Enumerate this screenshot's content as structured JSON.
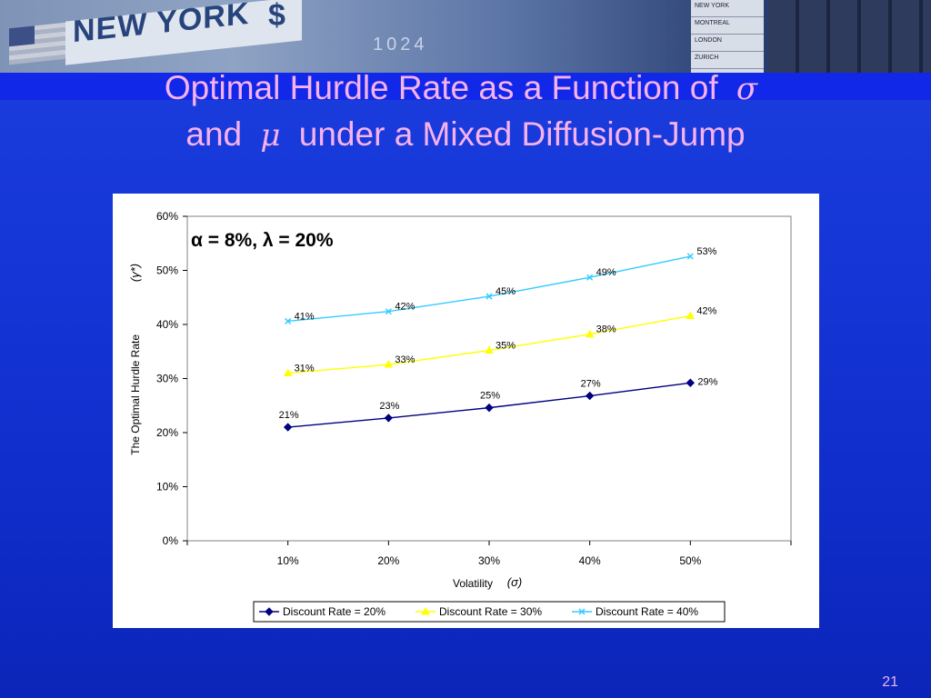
{
  "slide": {
    "title_part1": "Optimal Hurdle Rate as a Function of",
    "title_sym1": "σ",
    "title_and": "and",
    "title_sym2": "μ",
    "title_part2": "under a Mixed Diffusion-Jump",
    "page_number": "21"
  },
  "banner": {
    "sign_text": "NEW YORK",
    "dollar": "$",
    "digits": "1024",
    "board_items": [
      "NEW YORK",
      "MONTREAL",
      "LONDON",
      "ZURICH"
    ]
  },
  "colors": {
    "background": "#1535d6",
    "title": "#f7b2ee",
    "series": [
      "#000080",
      "#ffff00",
      "#33ccff"
    ]
  },
  "chart_data": {
    "type": "line",
    "annotation": "α = 8%, λ = 20%",
    "xlabel": "Volatility",
    "xlabel_symbol": "(σ)",
    "ylabel": "The Optimal Hurdle Rate",
    "ylabel_symbol": "(γ*)",
    "categories": [
      "10%",
      "20%",
      "30%",
      "40%",
      "50%"
    ],
    "y_ticks": [
      "0%",
      "10%",
      "20%",
      "30%",
      "40%",
      "50%",
      "60%"
    ],
    "ylim": [
      0,
      60
    ],
    "grid": false,
    "legend_position": "bottom",
    "series": [
      {
        "name": "Discount Rate = 20%",
        "values": [
          21,
          22.7,
          24.6,
          26.8,
          29.2
        ],
        "labels": [
          "21%",
          "23%",
          "25%",
          "27%",
          "29%"
        ],
        "marker": "diamond"
      },
      {
        "name": "Discount Rate = 30%",
        "values": [
          31,
          32.6,
          35.2,
          38.2,
          41.6
        ],
        "labels": [
          "31%",
          "33%",
          "35%",
          "38%",
          "42%"
        ],
        "marker": "triangle"
      },
      {
        "name": "Discount Rate = 40%",
        "values": [
          40.6,
          42.4,
          45.2,
          48.7,
          52.6
        ],
        "labels": [
          "41%",
          "42%",
          "45%",
          "49%",
          "53%"
        ],
        "marker": "x"
      }
    ]
  }
}
